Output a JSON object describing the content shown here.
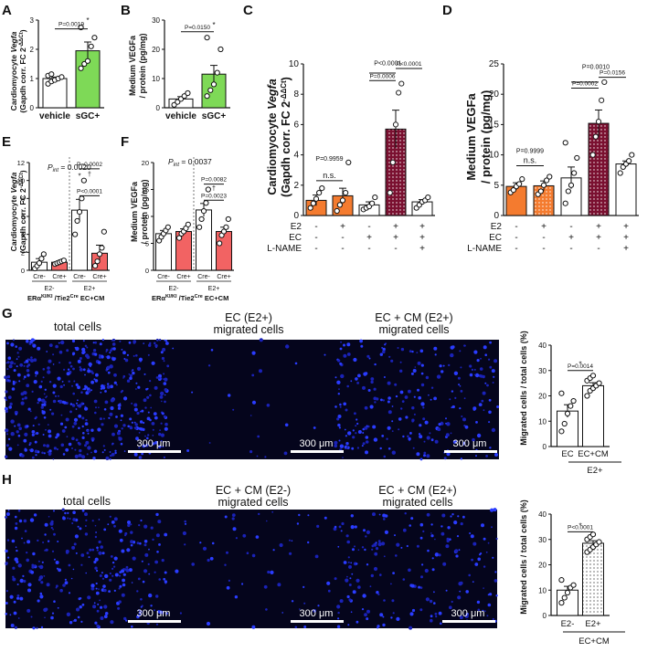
{
  "panels": {
    "A": {
      "letter": "A",
      "ylabel1": "Cardiomyocyte ",
      "ylabel1_italic": "Vegfa",
      "ylabel2": "(Gapdh corr. FC 2",
      "ylabel2_sup": "-ΔΔCt",
      "ylabel2_end": ")"
    },
    "B": {
      "letter": "B",
      "ylabel1": "Medium VEGFa",
      "ylabel2": "/ protein (pg/mg)"
    },
    "C": {
      "letter": "C",
      "ylabel1": "Cardiomyocyte ",
      "ylabel1_italic": "Vegfa",
      "ylabel2": "(Gapdh corr. FC 2",
      "ylabel2_sup": "-ΔΔCt",
      "ylabel2_end": ")"
    },
    "D": {
      "letter": "D",
      "ylabel1": "Medium VEGFa",
      "ylabel2": "/ protein (pg/mg)"
    },
    "E": {
      "letter": "E",
      "ylabel1": "Cardiomyocyte ",
      "ylabel1_italic": "Vegfa",
      "ylabel2": "(Gapdh corr. FC 2",
      "ylabel2_sup": "-ΔΔCt",
      "ylabel2_end": ")",
      "pint_label": "P",
      "pint_sub": "int",
      "pint_value": " = 0.0020",
      "genotype_left": "ERα",
      "genotype_sup": "KI/KI",
      "genotype_right": " /Tie2",
      "genotype_sup2": "Cre",
      "genotype_end": " EC+CM"
    },
    "F": {
      "letter": "F",
      "ylabel1": "Medium VEGFa",
      "ylabel2": "/ protein (pg/mg)",
      "pint_label": "P",
      "pint_sub": "int",
      "pint_value": " = 0.0037",
      "genotype_left": "ERα",
      "genotype_sup": "KI/KI",
      "genotype_right": " /Tie2",
      "genotype_sup2": "Cre",
      "genotype_end": " EC+CM"
    },
    "G": {
      "letter": "G",
      "ylabel": "Migrated cells / total cells (%)",
      "bottom_label": "E2+"
    },
    "H": {
      "letter": "H",
      "ylabel": "Migrated cells / total cells (%)",
      "bottom_label": "EC+CM"
    }
  },
  "micrographs": {
    "G": [
      {
        "title1": "total cells",
        "title2": "",
        "scale": "300 μm"
      },
      {
        "title1": "EC (E2+)",
        "title2": "migrated cells",
        "scale": "300 μm"
      },
      {
        "title1": "EC + CM (E2+)",
        "title2": "migrated cells",
        "scale": "300 μm"
      }
    ],
    "H": [
      {
        "title1": "total cells",
        "title2": "",
        "scale": "300 μm"
      },
      {
        "title1": "EC + CM (E2-)",
        "title2": "migrated cells",
        "scale": "300 μm"
      },
      {
        "title1": "EC + CM (E2+)",
        "title2": "migrated cells",
        "scale": "300 μm"
      }
    ]
  },
  "chart_data": [
    {
      "id": "A",
      "type": "bar",
      "ylim": [
        0,
        3
      ],
      "yticks": [
        "0",
        "1",
        "2",
        "3"
      ],
      "categories": [
        "vehicle",
        "sGC+"
      ],
      "values": [
        1.0,
        1.95
      ],
      "errors": [
        0.05,
        0.3
      ],
      "fills": [
        "#ffffff",
        "#7ed957"
      ],
      "patterns": [
        "none",
        "none"
      ],
      "points": [
        [
          0.82,
          0.9,
          0.95,
          1.0,
          1.05,
          1.1,
          1.15
        ],
        [
          1.35,
          1.5,
          1.6,
          2.1,
          2.4,
          2.75
        ]
      ],
      "brackets": [
        {
          "from": 0,
          "to": 1,
          "level": 2.7,
          "text": "P=0.0019"
        }
      ],
      "stars": [
        {
          "at": 1,
          "level": 2.9
        }
      ]
    },
    {
      "id": "B",
      "type": "bar",
      "ylim": [
        0,
        30
      ],
      "yticks": [
        "0",
        "10",
        "20",
        "30"
      ],
      "categories": [
        "vehicle",
        "sGC+"
      ],
      "values": [
        3.0,
        11.5
      ],
      "errors": [
        0.8,
        3.0
      ],
      "fills": [
        "#ffffff",
        "#7ed957"
      ],
      "patterns": [
        "none",
        "none"
      ],
      "points": [
        [
          1.0,
          2.0,
          3.0,
          4.0,
          5.0
        ],
        [
          4.0,
          6.0,
          8.0,
          12.0,
          20.0,
          24.0
        ]
      ],
      "brackets": [
        {
          "from": 0,
          "to": 1,
          "level": 26,
          "text": "P=0.0150"
        }
      ],
      "stars": [
        {
          "at": 1,
          "level": 27.5
        }
      ]
    },
    {
      "id": "C",
      "type": "bar",
      "ylim": [
        0,
        10
      ],
      "yticks": [
        "0",
        "2",
        "4",
        "6",
        "8",
        "10"
      ],
      "categories": [
        "1",
        "2",
        "3",
        "4",
        "5"
      ],
      "values": [
        1.0,
        1.3,
        0.7,
        5.7,
        0.9
      ],
      "errors": [
        0.35,
        0.5,
        0.2,
        1.25,
        0.15
      ],
      "fills": [
        "#f47b2f",
        "#f47b2f",
        "#ffffff",
        "#7a1030",
        "#ffffff"
      ],
      "patterns": [
        "none",
        "none",
        "none",
        "dots",
        "none"
      ],
      "points": [
        [
          0.5,
          0.8,
          1.1,
          1.5,
          1.8
        ],
        [
          0.3,
          0.7,
          1.0,
          1.5,
          3.5
        ],
        [
          0.4,
          0.5,
          0.6,
          0.8,
          1.2
        ],
        [
          1.5,
          3.5,
          6.0,
          8.1,
          8.7
        ],
        [
          0.5,
          0.7,
          0.9,
          1.0,
          1.2
        ]
      ],
      "brackets": [
        {
          "from": 0,
          "to": 1,
          "level": 2.3,
          "text": "n.s."
        },
        {
          "from": 2,
          "to": 3,
          "level": 8.9,
          "text": "P=0.0006"
        },
        {
          "from": 3,
          "to": 4,
          "level": 9.7,
          "text": "P<0.0001"
        }
      ],
      "annots": [
        {
          "at": 0.5,
          "level": 3.6,
          "text": "P=0.9959"
        },
        {
          "at": 2.7,
          "level": 9.9,
          "text": "P<0.0001"
        }
      ],
      "lines": [
        {
          "from": 2.0,
          "to": 3.0,
          "level": 9.4
        }
      ],
      "conditions": {
        "labels": [
          "E2",
          "EC",
          "L-NAME"
        ],
        "rows": [
          [
            "-",
            "+",
            "-",
            "+",
            "+"
          ],
          [
            "-",
            "-",
            "+",
            "+",
            "+"
          ],
          [
            "-",
            "-",
            "-",
            "-",
            "+"
          ]
        ]
      }
    },
    {
      "id": "D",
      "type": "bar",
      "ylim": [
        0,
        25
      ],
      "yticks": [
        "0",
        "5",
        "10",
        "15",
        "20",
        "25"
      ],
      "categories": [
        "1",
        "2",
        "3",
        "4",
        "5"
      ],
      "values": [
        4.8,
        4.9,
        6.2,
        15.2,
        8.5
      ],
      "errors": [
        0.6,
        0.8,
        1.8,
        2.2,
        0.5
      ],
      "fills": [
        "#f47b2f",
        "#f47b2f",
        "#ffffff",
        "#7a1030",
        "#ffffff"
      ],
      "patterns": [
        "none",
        "dots",
        "none",
        "dots",
        "none"
      ],
      "points": [
        [
          3.8,
          4.2,
          4.8,
          5.2,
          6.0
        ],
        [
          3.5,
          4.0,
          5.0,
          5.8,
          6.4
        ],
        [
          2.0,
          4.0,
          5.0,
          7.0,
          9.5,
          12.0
        ],
        [
          10.0,
          13.0,
          15.5,
          19.0,
          22.0
        ],
        [
          7.0,
          8.0,
          8.5,
          9.0,
          10.0
        ]
      ],
      "brackets": [
        {
          "from": 0,
          "to": 1,
          "level": 8.2,
          "text": "n.s."
        },
        {
          "from": 2,
          "to": 3,
          "level": 21.0,
          "text": "P=0.0002"
        },
        {
          "from": 3,
          "to": 4,
          "level": 22.8,
          "text": "P=0.0156"
        }
      ],
      "annots": [
        {
          "at": 0.5,
          "level": 10.3,
          "text": "P=0.9999"
        },
        {
          "at": 2.9,
          "level": 24.2,
          "text": "P=0.0010"
        }
      ],
      "lines": [
        {
          "from": 2.0,
          "to": 3.0,
          "level": 22.0
        }
      ],
      "conditions": {
        "labels": [
          "E2",
          "EC",
          "L-NAME"
        ],
        "rows": [
          [
            "-",
            "+",
            "-",
            "+",
            "+"
          ],
          [
            "-",
            "-",
            "+",
            "+",
            "+"
          ],
          [
            "-",
            "-",
            "-",
            "-",
            "+"
          ]
        ]
      }
    },
    {
      "id": "E",
      "type": "bar",
      "ylim": [
        0,
        12
      ],
      "yticks": [
        "0",
        "2",
        "4",
        "6",
        "8",
        "10",
        "12"
      ],
      "categories": [
        "Cre-",
        "Cre+",
        "Cre-",
        "Cre+"
      ],
      "groups": [
        "E2-",
        "E2+"
      ],
      "values": [
        0.9,
        0.9,
        6.7,
        1.9
      ],
      "errors": [
        0.4,
        0.1,
        1.2,
        0.9
      ],
      "fills": [
        "#ffffff",
        "#f26363",
        "#ffffff",
        "#f26363"
      ],
      "patterns": [
        "none",
        "none",
        "none",
        "none"
      ],
      "points": [
        [
          0.2,
          0.5,
          0.8,
          1.3,
          1.8
        ],
        [
          0.7,
          0.8,
          0.9,
          1.0,
          1.1
        ],
        [
          4.0,
          5.5,
          6.5,
          8.0,
          10.0
        ],
        [
          0.5,
          1.0,
          1.8,
          2.5,
          4.3
        ]
      ],
      "brackets": [
        {
          "from": 2,
          "to": 3,
          "level": 8.3,
          "text": "P<0.0001"
        },
        {
          "from": 2,
          "to": 3,
          "level": 11.3,
          "text": "P=0.0002"
        }
      ],
      "daggers": [
        {
          "at": 2.5,
          "level": 10.5
        }
      ],
      "stars": [
        {
          "at": 2.0,
          "level": 10.2
        }
      ]
    },
    {
      "id": "F",
      "type": "bar",
      "ylim": [
        0,
        20
      ],
      "yticks": [
        "0",
        "5",
        "10",
        "15",
        "20"
      ],
      "categories": [
        "Cre-",
        "Cre+",
        "Cre-",
        "Cre+"
      ],
      "groups": [
        "E2-",
        "E2+"
      ],
      "values": [
        6.8,
        7.2,
        11.2,
        7.2
      ],
      "errors": [
        0.6,
        0.5,
        1.2,
        0.8
      ],
      "fills": [
        "#ffffff",
        "#f26363",
        "#ffffff",
        "#f26363"
      ],
      "patterns": [
        "none",
        "none",
        "none",
        "none"
      ],
      "points": [
        [
          5.5,
          6.2,
          6.8,
          7.4,
          8.0
        ],
        [
          6.0,
          6.8,
          7.2,
          7.8,
          8.5
        ],
        [
          8.0,
          9.5,
          11.0,
          12.5,
          15.0
        ],
        [
          5.0,
          6.5,
          7.2,
          8.0,
          9.5
        ]
      ],
      "brackets": [
        {
          "from": 2,
          "to": 3,
          "level": 13.0,
          "text": "P=0.0023"
        },
        {
          "from": 2,
          "to": 3,
          "level": 16.0,
          "text": "P=0.0082"
        }
      ],
      "daggers": [
        {
          "at": 2.5,
          "level": 14.8
        }
      ]
    },
    {
      "id": "G",
      "type": "bar",
      "ylim": [
        0,
        40
      ],
      "yticks": [
        "0",
        "10",
        "20",
        "30",
        "40"
      ],
      "categories": [
        "EC",
        "EC+CM"
      ],
      "values": [
        14.0,
        24.0
      ],
      "errors": [
        2.5,
        1.2
      ],
      "fills": [
        "#ffffff",
        "#ffffff"
      ],
      "patterns": [
        "none",
        "none"
      ],
      "points": [
        [
          6.0,
          9.0,
          13.0,
          16.0,
          18.0,
          21.0
        ],
        [
          20.0,
          22.0,
          23.0,
          24.0,
          25.0,
          26.0,
          27.0,
          28.0
        ]
      ],
      "brackets": [
        {
          "from": 0,
          "to": 1,
          "level": 30,
          "text": "P=0.0014"
        }
      ],
      "stars": [
        {
          "at": 0.5,
          "level": 31.5
        }
      ]
    },
    {
      "id": "H",
      "type": "bar",
      "ylim": [
        0,
        40
      ],
      "yticks": [
        "0",
        "10",
        "20",
        "30",
        "40"
      ],
      "categories": [
        "E2-",
        "E2+"
      ],
      "values": [
        10.0,
        28.5
      ],
      "errors": [
        1.5,
        1.0
      ],
      "fills": [
        "#ffffff",
        "#ffffff"
      ],
      "patterns": [
        "none",
        "dots"
      ],
      "points": [
        [
          5.0,
          7.0,
          9.0,
          11.0,
          12.0,
          14.0
        ],
        [
          25.0,
          26.0,
          27.0,
          28.0,
          29.0,
          30.0,
          31.0,
          32.0
        ]
      ],
      "brackets": [
        {
          "from": 0,
          "to": 1,
          "level": 33,
          "text": "P<0.0001"
        }
      ],
      "stars": [
        {
          "at": 0.5,
          "level": 34.5
        }
      ]
    }
  ]
}
